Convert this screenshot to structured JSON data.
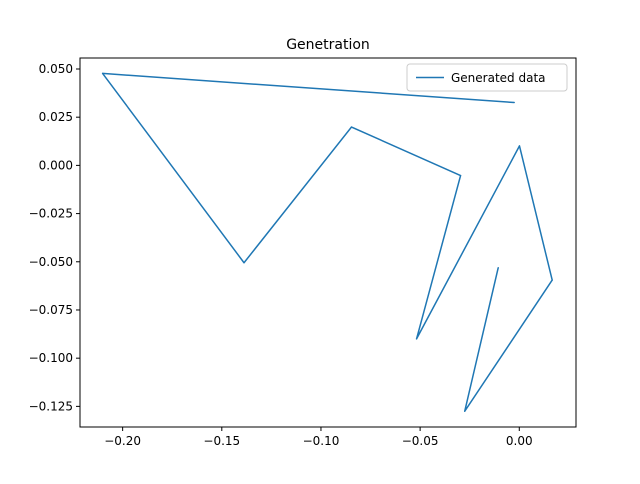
{
  "chart_data": {
    "type": "line",
    "title": "Genetration",
    "xlabel": "",
    "ylabel": "",
    "xlim": [
      -0.2215,
      0.0286
    ],
    "ylim": [
      -0.1357,
      0.0557
    ],
    "x_ticks": [
      -0.2,
      -0.15,
      -0.1,
      -0.05,
      0.0
    ],
    "x_tick_labels": [
      "−0.20",
      "−0.15",
      "−0.10",
      "−0.05",
      "0.00"
    ],
    "y_ticks": [
      0.05,
      0.025,
      0.0,
      -0.025,
      -0.05,
      -0.075,
      -0.1,
      -0.125
    ],
    "y_tick_labels": [
      "0.050",
      "0.025",
      "0.000",
      "−0.025",
      "−0.050",
      "−0.075",
      "−0.100",
      "−0.125"
    ],
    "grid": false,
    "legend_position": "upper right",
    "series": [
      {
        "name": "Generated data",
        "color": "#1f77b4",
        "x": [
          -0.0025,
          -0.2101,
          -0.1388,
          -0.0846,
          -0.0296,
          -0.0518,
          0.0001,
          0.0166,
          -0.0275,
          -0.0106
        ],
        "y": [
          0.0326,
          0.0477,
          -0.0505,
          0.0199,
          -0.0053,
          -0.09,
          0.0101,
          -0.0595,
          -0.1275,
          -0.053
        ]
      }
    ]
  }
}
